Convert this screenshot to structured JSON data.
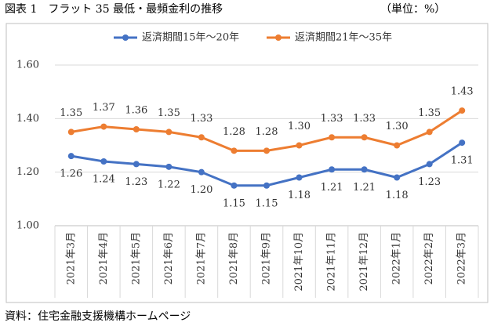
{
  "chart_data": {
    "type": "line",
    "title": "図表 1　フラット 35 最低・最頻金利の推移",
    "unit_note": "（単位：%）",
    "source": "資料：住宅金融支援機構ホームページ",
    "categories": [
      "2021年3月",
      "2021年4月",
      "2021年5月",
      "2021年6月",
      "2021年7月",
      "2021年8月",
      "2021年9月",
      "2021年10月",
      "2021年11月",
      "2021年12月",
      "2022年1月",
      "2022年2月",
      "2022年3月"
    ],
    "series": [
      {
        "name": "返済期間15年～20年",
        "color": "#4472c4",
        "values": [
          1.26,
          1.24,
          1.23,
          1.22,
          1.2,
          1.15,
          1.15,
          1.18,
          1.21,
          1.21,
          1.18,
          1.23,
          1.31
        ],
        "value_labels": [
          "1.26",
          "1.24",
          "1.23",
          "1.22",
          "1.20",
          "1.15",
          "1.15",
          "1.18",
          "1.21",
          "1.21",
          "1.18",
          "1.23",
          "1.31"
        ]
      },
      {
        "name": "返済期間21年～35年",
        "color": "#ed7d31",
        "values": [
          1.35,
          1.37,
          1.36,
          1.35,
          1.33,
          1.28,
          1.28,
          1.3,
          1.33,
          1.33,
          1.3,
          1.35,
          1.43
        ],
        "value_labels": [
          "1.35",
          "1.37",
          "1.36",
          "1.35",
          "1.33",
          "1.28",
          "1.28",
          "1.30",
          "1.33",
          "1.33",
          "1.30",
          "1.35",
          "1.43"
        ]
      }
    ],
    "ylim": [
      1.0,
      1.6
    ],
    "yticks": [
      {
        "value": 1.0,
        "label": "1.00"
      },
      {
        "value": 1.2,
        "label": "1.20"
      },
      {
        "value": 1.4,
        "label": "1.40"
      },
      {
        "value": 1.6,
        "label": "1.60"
      }
    ],
    "grid": true
  }
}
